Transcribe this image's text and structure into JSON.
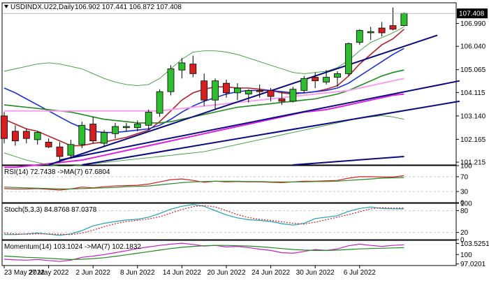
{
  "colors": {
    "bull": "#2ebd2e",
    "bear": "#d42020",
    "border": "#000000",
    "grid": "#c8c8c8",
    "ma_fast": "#b22222",
    "ma_blue": "#1a2fd6",
    "ma_green": "#1f8a1f",
    "ma_magenta": "#e020e0",
    "ma_pink": "#f5a0f0",
    "bb": "#3a9a3a",
    "trendline": "#0a0a80",
    "rsi": "#d42020",
    "rsi_ma": "#2a8a2a",
    "stoch_main": "#20a0b0",
    "stoch_signal": "#d42020",
    "mom_main": "#c020c0",
    "mom_ma": "#1f8a1f",
    "price_tag_bg": "#000000",
    "price_tag_fg": "#ffffff"
  },
  "header": {
    "symbol": "USDINDX.U22,Daily",
    "ohlc": "106.902 107.441 106.872 107.408"
  },
  "price_tag": "107.408",
  "x_axis_labels": [
    "23 May 2022",
    "27 May 2022",
    "2 Jun 2022",
    "8 Jun 2022",
    "14 Jun 2022",
    "20 Jun 2022",
    "24 Jun 2022",
    "30 Jun 2022",
    "6 Jul 2022"
  ],
  "chart_data": [
    {
      "type": "candlestick",
      "title": "USDINDX.U22,Daily",
      "y_axis_labels": [
        "106.990",
        "106.040",
        "105.065",
        "104.115",
        "103.140",
        "102.165",
        "101.215"
      ],
      "ylim": [
        101.1,
        107.85
      ],
      "candles": [
        {
          "o": 103.14,
          "h": 103.3,
          "l": 102.0,
          "c": 102.2
        },
        {
          "o": 102.5,
          "h": 102.75,
          "l": 101.9,
          "c": 102.1
        },
        {
          "o": 102.5,
          "h": 102.62,
          "l": 102.0,
          "c": 102.2
        },
        {
          "o": 102.15,
          "h": 102.5,
          "l": 101.95,
          "c": 102.45
        },
        {
          "o": 102.05,
          "h": 102.2,
          "l": 101.8,
          "c": 101.85
        },
        {
          "o": 101.85,
          "h": 102.05,
          "l": 101.2,
          "c": 101.45
        },
        {
          "o": 101.5,
          "h": 102.15,
          "l": 101.35,
          "c": 101.95
        },
        {
          "o": 101.95,
          "h": 102.9,
          "l": 101.8,
          "c": 102.75
        },
        {
          "o": 102.8,
          "h": 103.1,
          "l": 102.0,
          "c": 102.1
        },
        {
          "o": 102.0,
          "h": 102.55,
          "l": 101.85,
          "c": 102.45
        },
        {
          "o": 102.4,
          "h": 102.85,
          "l": 102.2,
          "c": 102.7
        },
        {
          "o": 102.65,
          "h": 102.85,
          "l": 102.5,
          "c": 102.7
        },
        {
          "o": 102.65,
          "h": 102.95,
          "l": 102.5,
          "c": 102.8
        },
        {
          "o": 102.75,
          "h": 103.4,
          "l": 102.55,
          "c": 103.3
        },
        {
          "o": 103.25,
          "h": 104.25,
          "l": 103.1,
          "c": 104.15
        },
        {
          "o": 104.15,
          "h": 105.25,
          "l": 104.0,
          "c": 105.1
        },
        {
          "o": 105.05,
          "h": 105.55,
          "l": 104.7,
          "c": 105.35
        },
        {
          "o": 105.3,
          "h": 105.65,
          "l": 104.75,
          "c": 104.9
        },
        {
          "o": 104.6,
          "h": 104.9,
          "l": 103.55,
          "c": 103.8
        },
        {
          "o": 103.8,
          "h": 104.7,
          "l": 103.4,
          "c": 104.6
        },
        {
          "o": 104.5,
          "h": 104.65,
          "l": 103.9,
          "c": 104.1
        },
        {
          "o": 104.1,
          "h": 104.5,
          "l": 103.8,
          "c": 104.3
        },
        {
          "o": 104.05,
          "h": 104.25,
          "l": 103.7,
          "c": 104.2
        },
        {
          "o": 104.2,
          "h": 104.45,
          "l": 103.9,
          "c": 104.15
        },
        {
          "o": 104.2,
          "h": 104.3,
          "l": 103.75,
          "c": 103.95
        },
        {
          "o": 103.85,
          "h": 104.15,
          "l": 103.6,
          "c": 103.75
        },
        {
          "o": 103.75,
          "h": 104.35,
          "l": 103.7,
          "c": 104.25
        },
        {
          "o": 104.2,
          "h": 104.8,
          "l": 104.1,
          "c": 104.7
        },
        {
          "o": 104.75,
          "h": 104.95,
          "l": 104.3,
          "c": 104.6
        },
        {
          "o": 104.55,
          "h": 105.05,
          "l": 104.45,
          "c": 104.75
        },
        {
          "o": 104.75,
          "h": 105.0,
          "l": 104.35,
          "c": 104.9
        },
        {
          "o": 104.9,
          "h": 106.2,
          "l": 104.8,
          "c": 106.15
        },
        {
          "o": 106.2,
          "h": 106.75,
          "l": 106.1,
          "c": 106.7
        },
        {
          "o": 106.6,
          "h": 106.85,
          "l": 106.3,
          "c": 106.65
        },
        {
          "o": 106.8,
          "h": 107.05,
          "l": 106.45,
          "c": 106.6
        },
        {
          "o": 106.9,
          "h": 107.65,
          "l": 106.7,
          "c": 106.75
        },
        {
          "o": 106.902,
          "h": 107.441,
          "l": 106.872,
          "c": 107.408
        }
      ],
      "overlays": [
        {
          "key": "ma_fast",
          "values": [
            103.0,
            102.8,
            102.6,
            102.5,
            102.3,
            102.1,
            101.9,
            101.9,
            102.0,
            102.05,
            102.15,
            102.25,
            102.4,
            102.55,
            102.9,
            103.35,
            103.8,
            104.1,
            104.25,
            104.35,
            104.35,
            104.3,
            104.3,
            104.25,
            104.2,
            104.1,
            104.05,
            104.1,
            104.15,
            104.25,
            104.4,
            104.8,
            105.3,
            105.7,
            106.1,
            106.35,
            106.75
          ]
        },
        {
          "key": "ma_blue",
          "values": [
            104.3,
            104.1,
            103.85,
            103.6,
            103.35,
            103.1,
            102.85,
            102.65,
            102.5,
            102.45,
            102.45,
            102.5,
            102.55,
            102.6,
            102.75,
            103.0,
            103.3,
            103.55,
            103.75,
            103.9,
            104.05,
            104.15,
            104.2,
            104.2,
            104.2,
            104.15,
            104.1,
            104.1,
            104.15,
            104.2,
            104.3,
            104.5,
            104.8,
            105.1,
            105.4,
            105.7,
            105.95
          ]
        },
        {
          "key": "ma_green",
          "values": [
            103.6,
            103.55,
            103.5,
            103.45,
            103.4,
            103.35,
            103.3,
            103.2,
            103.1,
            103.0,
            102.95,
            102.9,
            102.85,
            102.85,
            102.85,
            102.9,
            103.0,
            103.1,
            103.2,
            103.3,
            103.4,
            103.5,
            103.55,
            103.6,
            103.65,
            103.7,
            103.75,
            103.8,
            103.85,
            103.95,
            104.05,
            104.2,
            104.4,
            104.6,
            104.8,
            104.95,
            105.05
          ]
        },
        {
          "key": "ma_magenta",
          "values": [
            101.0,
            101.0,
            101.05,
            101.1,
            101.15,
            101.2,
            101.25,
            101.3,
            101.4,
            101.5,
            101.6,
            101.7,
            101.8,
            101.9,
            102.0,
            102.1,
            102.2,
            102.3,
            102.4,
            102.5,
            102.6,
            102.7,
            102.8,
            102.9,
            103.0,
            103.1,
            103.2,
            103.3,
            103.35,
            103.4,
            103.5,
            103.6,
            103.7,
            103.8,
            103.9,
            104.0,
            104.05
          ]
        },
        {
          "key": "ma_pink",
          "values": [
            103.35,
            103.35,
            103.35,
            103.35,
            103.35,
            103.35,
            103.35,
            103.35,
            103.35,
            103.35,
            103.35,
            103.35,
            103.35,
            103.35,
            103.35,
            103.4,
            103.45,
            103.5,
            103.55,
            103.6,
            103.65,
            103.7,
            103.75,
            103.8,
            103.85,
            103.9,
            103.95,
            104.0,
            104.05,
            104.1,
            104.15,
            104.2,
            104.3,
            104.4,
            104.5,
            104.6,
            104.7
          ]
        },
        {
          "key": "bb",
          "values": [
            105.0,
            105.1,
            105.2,
            105.3,
            105.35,
            105.3,
            105.2,
            105.1,
            104.9,
            104.7,
            104.55,
            104.45,
            104.4,
            104.45,
            104.7,
            105.1,
            105.5,
            105.8,
            105.85,
            105.85,
            105.8,
            105.7,
            105.55,
            105.4,
            105.25,
            105.1,
            104.95,
            104.9,
            104.95,
            105.0,
            105.15,
            105.45,
            105.85,
            106.2,
            106.4,
            106.6,
            106.85
          ]
        },
        {
          "key": "bb",
          "values": [
            101.6,
            101.45,
            101.3,
            101.2,
            101.1,
            101.05,
            101.05,
            101.1,
            101.15,
            101.2,
            101.25,
            101.3,
            101.35,
            101.4,
            101.45,
            101.5,
            101.55,
            101.6,
            101.65,
            101.75,
            101.85,
            101.95,
            102.05,
            102.15,
            102.25,
            102.35,
            102.45,
            102.55,
            102.65,
            102.75,
            102.85,
            102.95,
            103.05,
            103.1,
            103.15,
            103.1,
            103.0
          ]
        }
      ],
      "trendlines": [
        {
          "x0": 4,
          "y0": 101.1,
          "x1": 39,
          "y1": 106.5
        },
        {
          "x0": 5,
          "y0": 101.3,
          "x1": 41,
          "y1": 104.6
        },
        {
          "x0": 7,
          "y0": 101.1,
          "x1": 41,
          "y1": 103.75
        },
        {
          "x0": 26,
          "y0": 101.1,
          "x1": 36,
          "y1": 101.45
        }
      ]
    },
    {
      "type": "line",
      "title": "RSI(14) 72.7438 ->MA(7) 67.6804",
      "y_axis_labels": [
        "100",
        "70",
        "30",
        "0"
      ],
      "ylim": [
        0,
        100
      ],
      "levels": [
        70,
        30
      ],
      "series": [
        {
          "name": "RSI(14)",
          "key": "rsi",
          "values": [
            38,
            37,
            37,
            38,
            36,
            34,
            37,
            42,
            40,
            43,
            45,
            46,
            47,
            50,
            56,
            62,
            64,
            60,
            55,
            58,
            56,
            57,
            56,
            56,
            55,
            54,
            56,
            58,
            58,
            59,
            60,
            66,
            70,
            70,
            69,
            69,
            72.74
          ]
        },
        {
          "key": "rsi_ma",
          "values": [
            42,
            41,
            40,
            39,
            38,
            37,
            37,
            38,
            39,
            40,
            41,
            43,
            44,
            45,
            48,
            51,
            54,
            56,
            57,
            58,
            58,
            58,
            57,
            57,
            56,
            56,
            56,
            56,
            57,
            57,
            58,
            60,
            62,
            64,
            66,
            67,
            67.68
          ]
        }
      ]
    },
    {
      "type": "line",
      "title": "Stoch(5,3,3) 84.8768 87.0378",
      "y_axis_labels": [
        "100",
        "80",
        "20",
        "0"
      ],
      "ylim": [
        0,
        100
      ],
      "levels": [
        80,
        20
      ],
      "series": [
        {
          "key": "stoch_main",
          "values": [
            14,
            14,
            16,
            18,
            15,
            12,
            16,
            25,
            38,
            45,
            50,
            54,
            56,
            62,
            72,
            84,
            92,
            97,
            92,
            80,
            68,
            60,
            55,
            53,
            50,
            44,
            40,
            45,
            58,
            62,
            66,
            78,
            86,
            90,
            86,
            85,
            84.88
          ]
        },
        {
          "key": "stoch_signal",
          "values": [
            18,
            16,
            15,
            16,
            16,
            15,
            14,
            18,
            26,
            36,
            44,
            50,
            53,
            57,
            63,
            73,
            83,
            91,
            94,
            90,
            80,
            69,
            61,
            56,
            53,
            49,
            45,
            43,
            48,
            55,
            62,
            69,
            77,
            85,
            88,
            87,
            87.04
          ]
        }
      ]
    },
    {
      "type": "line",
      "title": "Momentum(14) 103.1024 ->MA(7) 102.1832",
      "y_axis_labels": [
        "103.5251",
        "100",
        "97.0201"
      ],
      "ylim": [
        96.5,
        104.5
      ],
      "series": [
        {
          "key": "mom_main",
          "values": [
            98.5,
            98.3,
            98.2,
            98.4,
            98.1,
            97.8,
            98.2,
            99.1,
            99.5,
            100.0,
            100.6,
            101.2,
            101.9,
            102.4,
            102.9,
            103.3,
            103.6,
            103.2,
            102.7,
            102.9,
            102.4,
            102.6,
            102.2,
            101.7,
            101.3,
            100.6,
            100.4,
            101.0,
            101.6,
            101.3,
            101.8,
            102.8,
            103.3,
            102.9,
            102.6,
            102.9,
            103.1
          ]
        },
        {
          "key": "mom_ma",
          "values": [
            99.5,
            99.3,
            99.1,
            99.0,
            98.8,
            98.6,
            98.4,
            98.5,
            98.7,
            99.0,
            99.4,
            99.9,
            100.4,
            100.9,
            101.4,
            101.9,
            102.3,
            102.6,
            102.8,
            102.9,
            102.9,
            102.8,
            102.7,
            102.5,
            102.2,
            101.9,
            101.6,
            101.4,
            101.3,
            101.3,
            101.4,
            101.6,
            101.8,
            101.9,
            102.0,
            102.1,
            102.18
          ]
        }
      ]
    }
  ]
}
